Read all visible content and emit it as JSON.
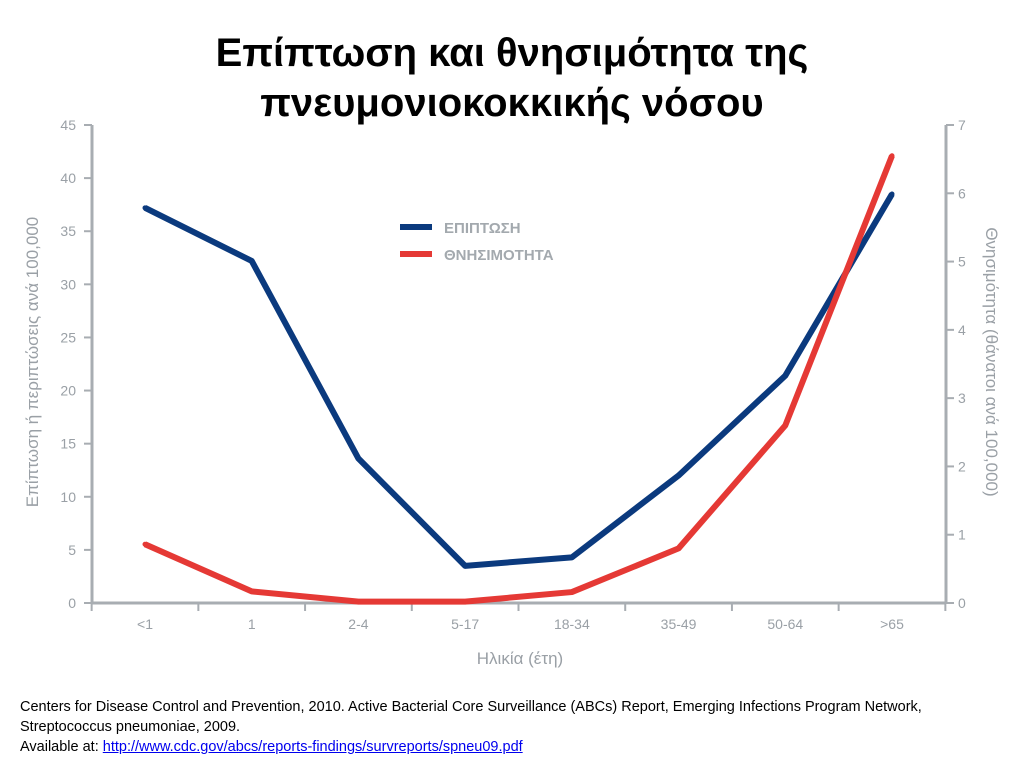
{
  "slide": {
    "title_line1": "Επίπτωση και θνησιμότητα της",
    "title_line2": "πνευμονιοκοκκικής νόσου"
  },
  "chart_data": {
    "type": "line",
    "categories": [
      "<1",
      "1",
      "2-4",
      "5-17",
      "18-34",
      "35-49",
      "50-64",
      ">65"
    ],
    "xlabel": "Ηλικία (έτη)",
    "ylabel": "Επίπτωση ή περιπτώσεις ανά 100,000",
    "y2label": "Θνησιμότητα (θάνατοι ανά 100,000)",
    "ylim": [
      0,
      45
    ],
    "yticks": [
      "0",
      "5",
      "10",
      "15",
      "20",
      "25",
      "30",
      "35",
      "40",
      "45"
    ],
    "y2lim": [
      0,
      7
    ],
    "y2ticks": [
      "0",
      "1",
      "2",
      "3",
      "4",
      "5",
      "6",
      "7"
    ],
    "grid": false,
    "legend_position": "top-center",
    "series": [
      {
        "name": "ΕΠΙΠΤΩΣΗ",
        "axis": "left",
        "color": "#0b3a7e",
        "values": [
          37.2,
          32.2,
          13.6,
          3.5,
          4.3,
          12.0,
          21.4,
          38.5
        ]
      },
      {
        "name": "ΘΝΗΣΙΜΟΤΗΤΑ",
        "axis": "right",
        "color": "#e53935",
        "values": [
          0.86,
          0.17,
          0.02,
          0.02,
          0.16,
          0.8,
          2.6,
          6.55
        ]
      }
    ]
  },
  "footer": {
    "citation": "Centers for Disease Control and Prevention, 2010. Active Bacterial Core Surveillance (ABCs) Report, Emerging Infections Program Network, Streptococcus pneumoniae, 2009.",
    "available_label": "Available at: ",
    "link_text": "http://www.cdc.gov/abcs/reports-findings/survreports/spneu09.pdf"
  }
}
